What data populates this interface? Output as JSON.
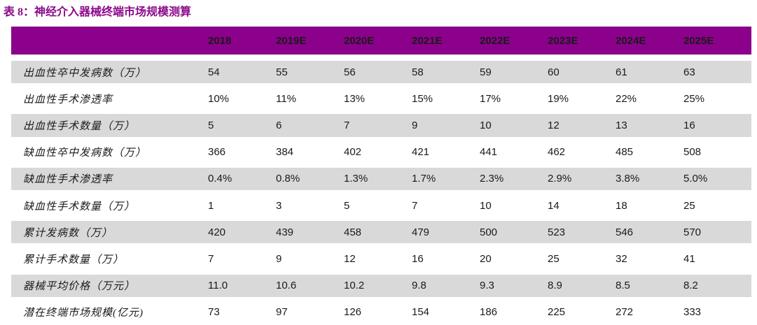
{
  "title": "表 8：神经介入器械终端市场规模测算",
  "colors": {
    "title_text": "#8B0A8B",
    "header_bg": "#8B018B",
    "header_text": "#FFFFFF",
    "row_alt_bg": "#D9D9D9",
    "body_text": "#1A1A1A"
  },
  "table": {
    "columns": [
      "2018",
      "2019E",
      "2020E",
      "2021E",
      "2022E",
      "2023E",
      "2024E",
      "2025E"
    ],
    "rows": [
      {
        "label": "出血性卒中发病数（万）",
        "values": [
          "54",
          "55",
          "56",
          "58",
          "59",
          "60",
          "61",
          "63"
        ]
      },
      {
        "label": "出血性手术渗透率",
        "values": [
          "10%",
          "11%",
          "13%",
          "15%",
          "17%",
          "19%",
          "22%",
          "25%"
        ]
      },
      {
        "label": "出血性手术数量（万）",
        "values": [
          "5",
          "6",
          "7",
          "9",
          "10",
          "12",
          "13",
          "16"
        ]
      },
      {
        "label": "缺血性卒中发病数（万）",
        "values": [
          "366",
          "384",
          "402",
          "421",
          "441",
          "462",
          "485",
          "508"
        ]
      },
      {
        "label": "缺血性手术渗透率",
        "values": [
          "0.4%",
          "0.8%",
          "1.3%",
          "1.7%",
          "2.3%",
          "2.9%",
          "3.8%",
          "5.0%"
        ]
      },
      {
        "label": "缺血性手术数量（万）",
        "values": [
          "1",
          "3",
          "5",
          "7",
          "10",
          "14",
          "18",
          "25"
        ]
      },
      {
        "label": "累计发病数（万）",
        "values": [
          "420",
          "439",
          "458",
          "479",
          "500",
          "523",
          "546",
          "570"
        ]
      },
      {
        "label": "累计手术数量（万）",
        "values": [
          "7",
          "9",
          "12",
          "16",
          "20",
          "25",
          "32",
          "41"
        ]
      },
      {
        "label": "器械平均价格（万元）",
        "values": [
          "11.0",
          "10.6",
          "10.2",
          "9.8",
          "9.3",
          "8.9",
          "8.5",
          "8.2"
        ]
      },
      {
        "label": "潜在终端市场规模(亿元)",
        "values": [
          "73",
          "97",
          "126",
          "154",
          "186",
          "225",
          "272",
          "333"
        ]
      }
    ]
  }
}
